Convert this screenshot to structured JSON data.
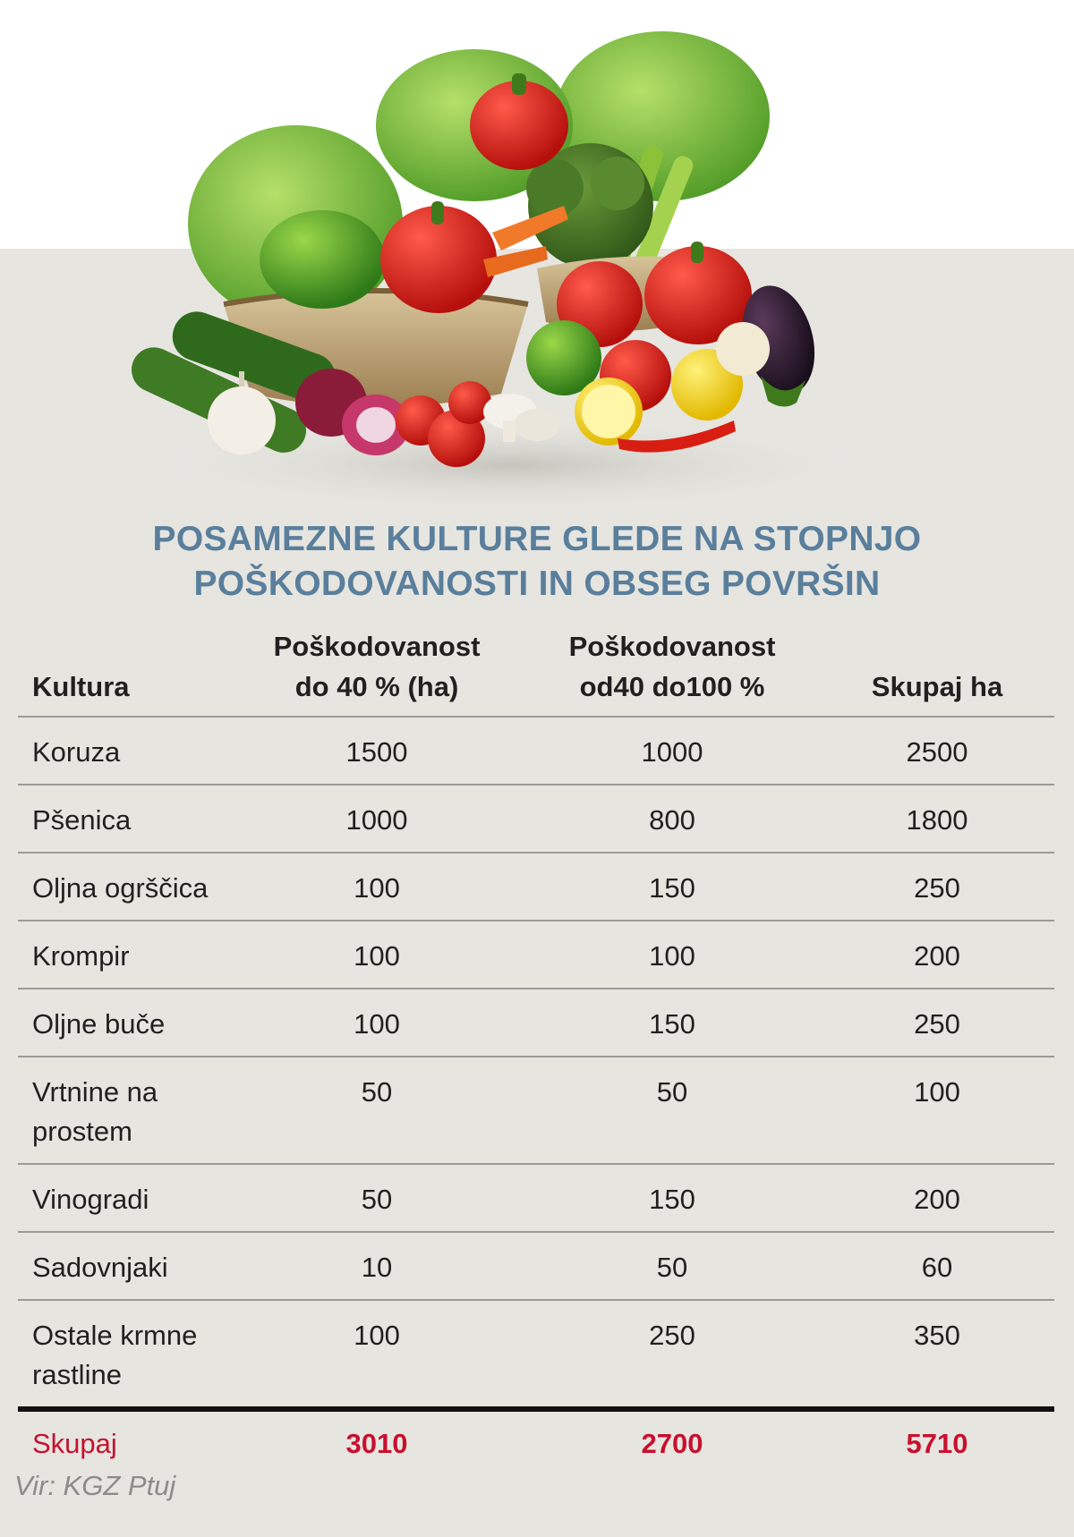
{
  "title": {
    "line1": "POSAMEZNE KULTURE GLEDE NA STOPNJO",
    "line2": "POŠKODOVANOSTI IN OBSEG POVRŠIN"
  },
  "table": {
    "headers": {
      "kultura": "Kultura",
      "col2_line1": "Poškodovanost",
      "col2_line2": "do 40 % (ha)",
      "col3_line1": "Poškodovanost",
      "col3_line2": "od40 do100 %",
      "col4": "Skupaj ha"
    },
    "rows": [
      {
        "name": "Koruza",
        "v1": "1500",
        "v2": "1000",
        "total": "2500"
      },
      {
        "name": "Pšenica",
        "v1": "1000",
        "v2": "800",
        "total": "1800"
      },
      {
        "name": "Oljna ogrščica",
        "v1": "100",
        "v2": "150",
        "total": "250"
      },
      {
        "name": "Krompir",
        "v1": "100",
        "v2": "100",
        "total": "200"
      },
      {
        "name": "Oljne buče",
        "v1": "100",
        "v2": "150",
        "total": "250"
      },
      {
        "name_line1": "Vrtnine na",
        "name_line2": "prostem",
        "v1": "50",
        "v2": "50",
        "total": "100"
      },
      {
        "name": "Vinogradi",
        "v1": "50",
        "v2": "150",
        "total": "200"
      },
      {
        "name": "Sadovnjaki",
        "v1": "10",
        "v2": "50",
        "total": "60"
      },
      {
        "name_line1": "Ostale krmne",
        "name_line2": "rastline",
        "v1": "100",
        "v2": "250",
        "total": "350"
      }
    ],
    "total_row": {
      "label": "Skupaj",
      "v1": "3010",
      "v2": "2700",
      "total": "5710"
    }
  },
  "source": "Vir: KGZ Ptuj",
  "colors": {
    "title": "#5a7f9c",
    "total_text": "#c8102e",
    "panel_background": "#e6e5e0",
    "source_text": "#8c8c8c"
  }
}
